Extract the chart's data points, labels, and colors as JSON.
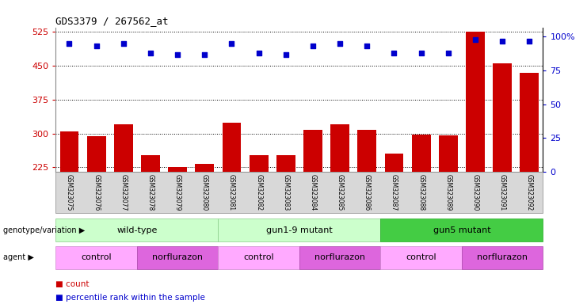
{
  "title": "GDS3379 / 267562_at",
  "samples": [
    "GSM323075",
    "GSM323076",
    "GSM323077",
    "GSM323078",
    "GSM323079",
    "GSM323080",
    "GSM323081",
    "GSM323082",
    "GSM323083",
    "GSM323084",
    "GSM323085",
    "GSM323086",
    "GSM323087",
    "GSM323088",
    "GSM323089",
    "GSM323090",
    "GSM323091",
    "GSM323092"
  ],
  "counts": [
    304,
    293,
    320,
    252,
    226,
    232,
    323,
    252,
    252,
    308,
    320,
    308,
    255,
    298,
    296,
    525,
    455,
    435
  ],
  "percentile_ranks": [
    95,
    93,
    95,
    88,
    87,
    87,
    95,
    88,
    87,
    93,
    95,
    93,
    88,
    88,
    88,
    98,
    97,
    97
  ],
  "ylim_left": [
    215,
    535
  ],
  "ylim_right": [
    0,
    107
  ],
  "yticks_left": [
    225,
    300,
    375,
    450,
    525
  ],
  "yticks_right": [
    0,
    25,
    50,
    75,
    100
  ],
  "bar_color": "#cc0000",
  "dot_color": "#0000cc",
  "bar_bottom": 215,
  "groups": [
    {
      "label": "wild-type",
      "start": 0,
      "end": 6,
      "color": "#ccffcc",
      "border": "#88cc88"
    },
    {
      "label": "gun1-9 mutant",
      "start": 6,
      "end": 12,
      "color": "#ccffcc",
      "border": "#88cc88"
    },
    {
      "label": "gun5 mutant",
      "start": 12,
      "end": 18,
      "color": "#44cc44",
      "border": "#22aa22"
    }
  ],
  "agents": [
    {
      "label": "control",
      "start": 0,
      "end": 3,
      "color": "#ffaaff",
      "border": "#cc88cc"
    },
    {
      "label": "norflurazon",
      "start": 3,
      "end": 6,
      "color": "#dd66dd",
      "border": "#aa44aa"
    },
    {
      "label": "control",
      "start": 6,
      "end": 9,
      "color": "#ffaaff",
      "border": "#cc88cc"
    },
    {
      "label": "norflurazon",
      "start": 9,
      "end": 12,
      "color": "#dd66dd",
      "border": "#aa44aa"
    },
    {
      "label": "control",
      "start": 12,
      "end": 15,
      "color": "#ffaaff",
      "border": "#cc88cc"
    },
    {
      "label": "norflurazon",
      "start": 15,
      "end": 18,
      "color": "#dd66dd",
      "border": "#aa44aa"
    }
  ],
  "genotype_label": "genotype/variation",
  "agent_label": "agent",
  "legend_count": "count",
  "legend_pct": "percentile rank within the sample",
  "tick_color_left": "#cc0000",
  "tick_color_right": "#0000cc",
  "xticklabel_bg": "#d8d8d8",
  "figure_bg": "#ffffff"
}
